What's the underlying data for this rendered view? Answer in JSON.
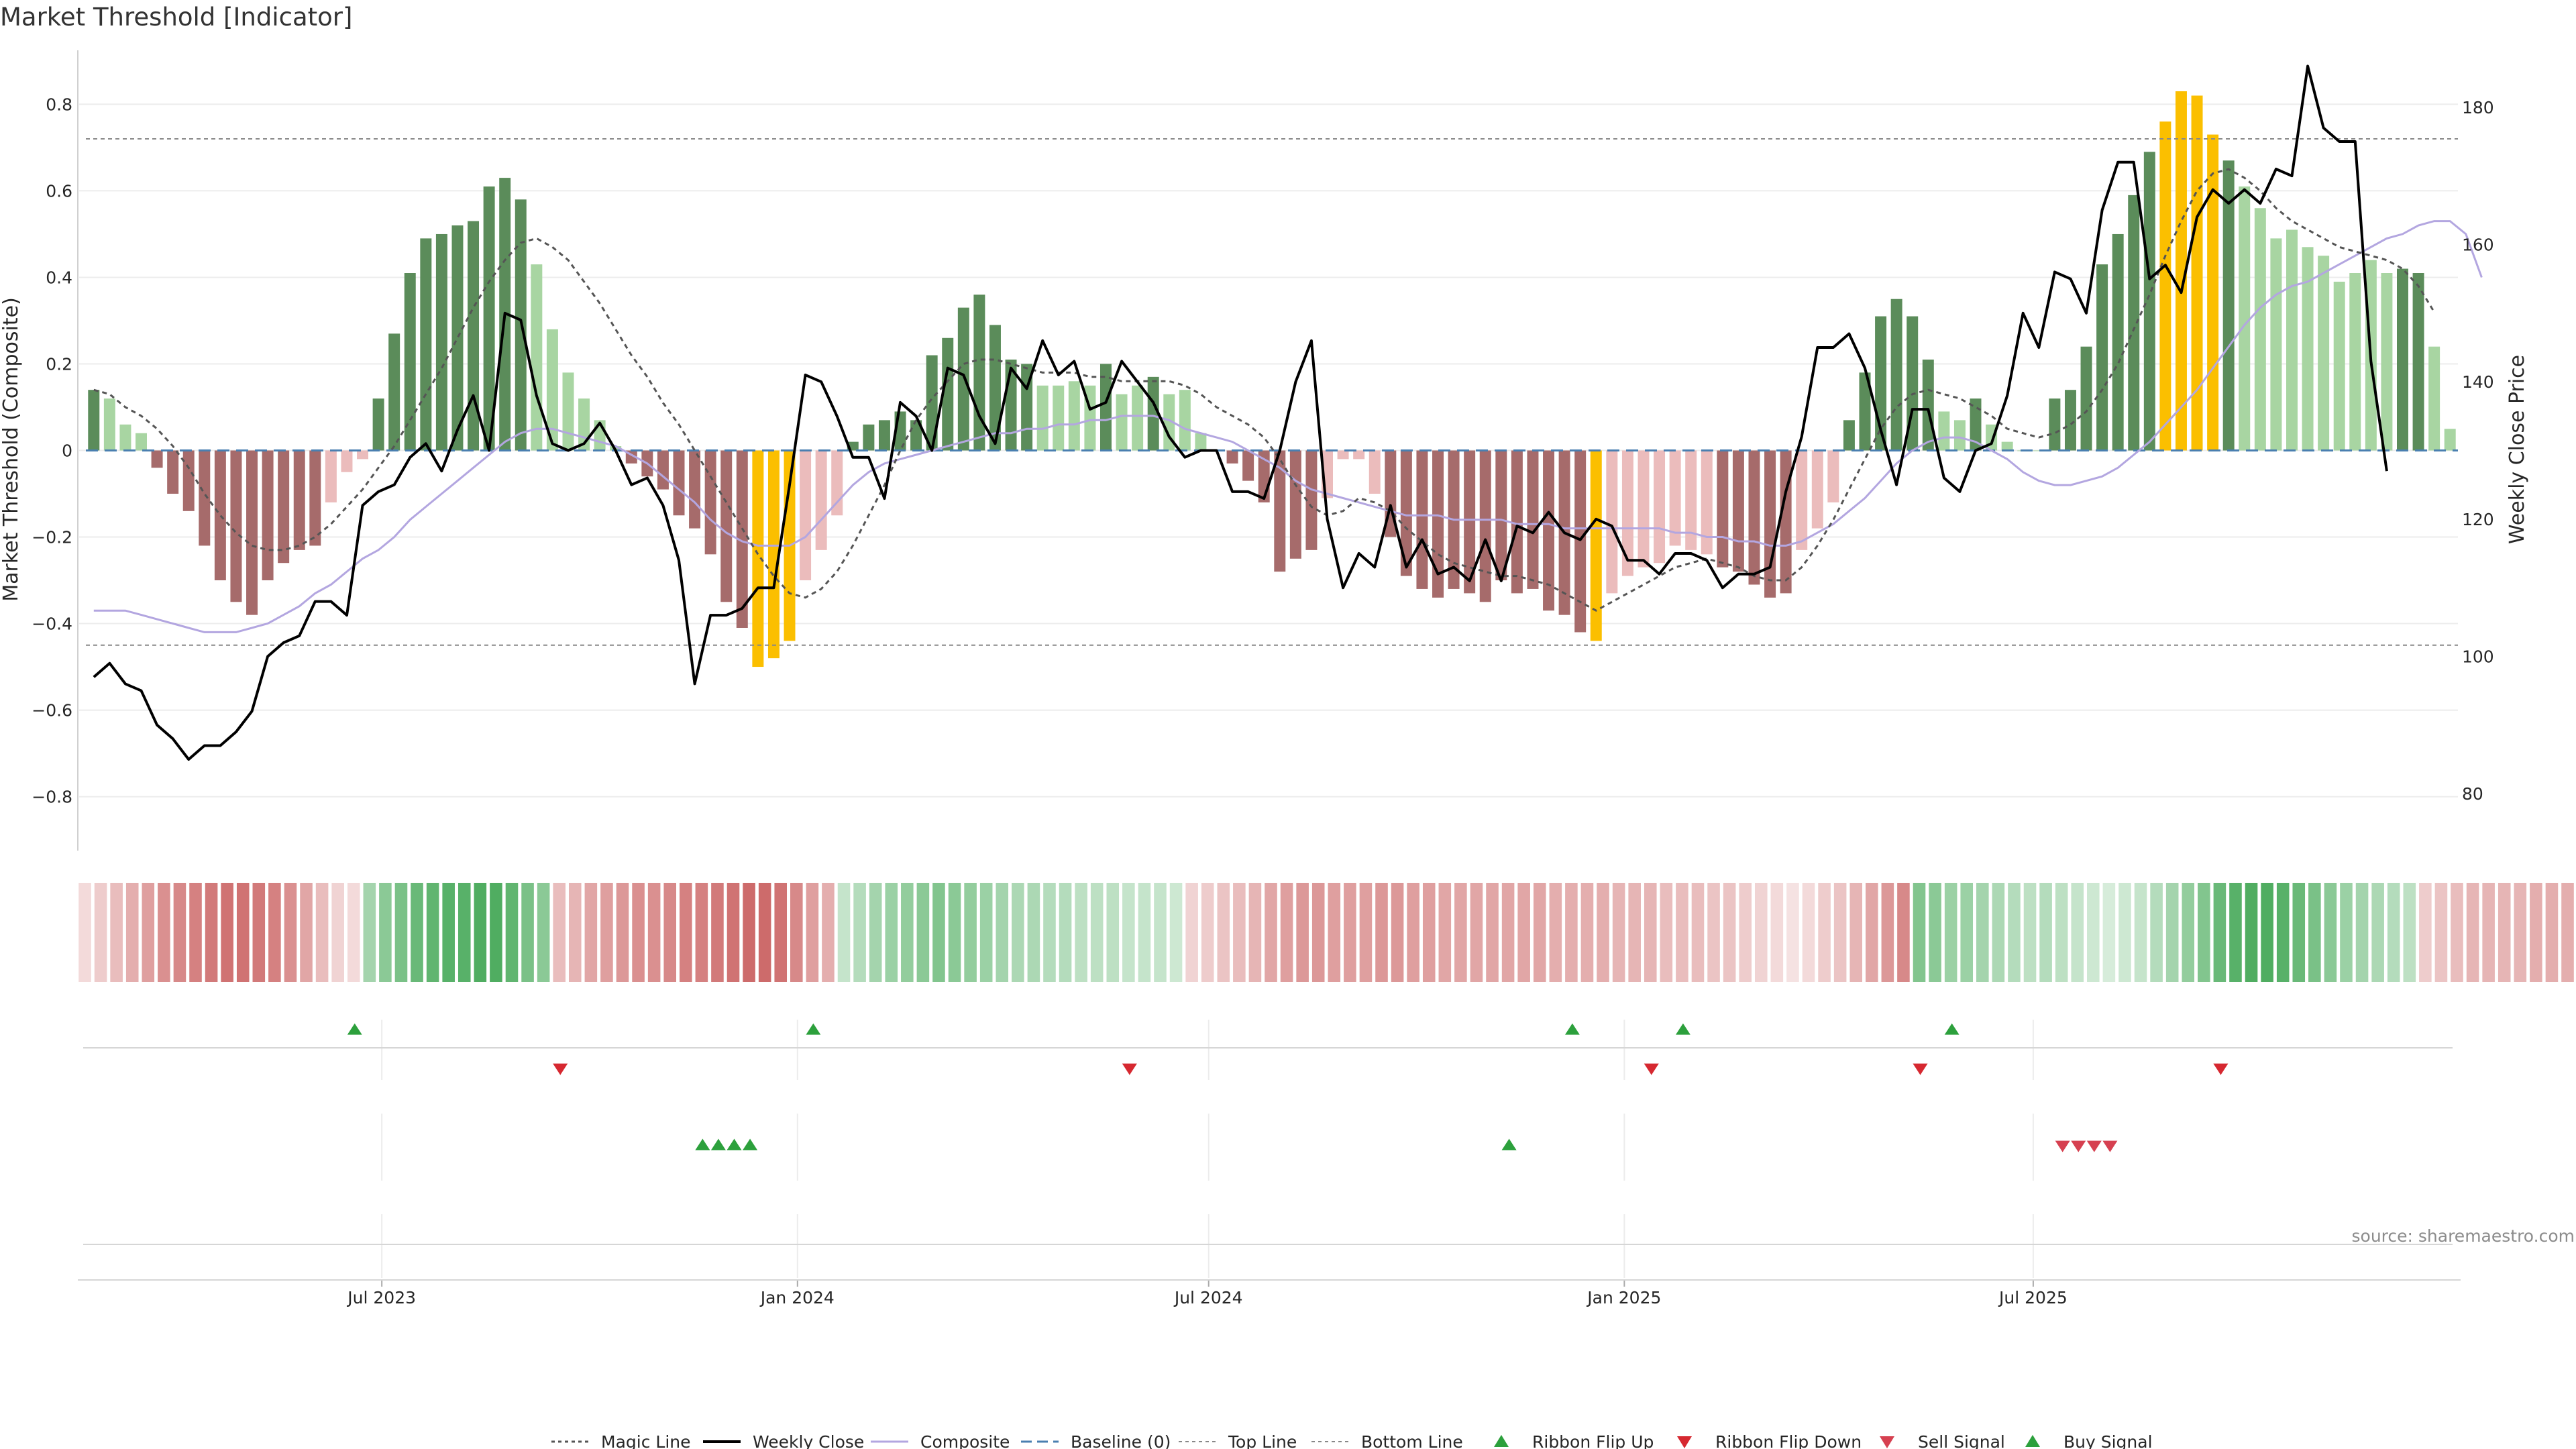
{
  "title": "Market Threshold [Indicator]",
  "source": "source: sharemaestro.com",
  "chart_data": {
    "type": "bar",
    "title": "Market Threshold [Indicator]",
    "ylabel": "Market Threshold (Composite)",
    "ylabel_right": "Weekly Close Price",
    "ylim": [
      -0.92,
      0.92
    ],
    "ylim_right": [
      72,
      188
    ],
    "yticks": [
      "0.8",
      "0.6",
      "0.4",
      "0.2",
      "0",
      "−0.2",
      "−0.4",
      "−0.6",
      "−0.8"
    ],
    "yticks_right": [
      "180",
      "160",
      "140",
      "120",
      "100",
      "80"
    ],
    "x_start": "2023-02-20",
    "x_interval": "weekly",
    "xticks": [
      "Jul 2023",
      "Jan 2024",
      "Jul 2024",
      "Jan 2025",
      "Jul 2025"
    ],
    "xtick_dates": [
      "2023-07-01",
      "2024-01-01",
      "2024-07-01",
      "2025-01-01",
      "2025-07-01"
    ],
    "top_line": 0.72,
    "bottom_line": -0.45,
    "baseline": 0,
    "composite_bars": [
      0.14,
      0.12,
      0.06,
      0.04,
      -0.04,
      -0.1,
      -0.14,
      -0.22,
      -0.3,
      -0.35,
      -0.38,
      -0.3,
      -0.26,
      -0.23,
      -0.22,
      -0.12,
      -0.05,
      -0.02,
      0.12,
      0.27,
      0.41,
      0.49,
      0.5,
      0.52,
      0.53,
      0.61,
      0.63,
      0.58,
      0.43,
      0.28,
      0.18,
      0.12,
      0.07,
      0.01,
      -0.03,
      -0.06,
      -0.09,
      -0.15,
      -0.18,
      -0.24,
      -0.35,
      -0.41,
      -0.5,
      -0.48,
      -0.44,
      -0.3,
      -0.23,
      -0.15,
      0.02,
      0.06,
      0.07,
      0.09,
      0.07,
      0.22,
      0.26,
      0.33,
      0.36,
      0.29,
      0.21,
      0.2,
      0.15,
      0.15,
      0.16,
      0.15,
      0.2,
      0.13,
      0.15,
      0.17,
      0.13,
      0.14,
      0.04,
      0.0,
      -0.03,
      -0.07,
      -0.12,
      -0.28,
      -0.25,
      -0.23,
      -0.11,
      -0.02,
      -0.02,
      -0.1,
      -0.2,
      -0.29,
      -0.32,
      -0.34,
      -0.32,
      -0.33,
      -0.35,
      -0.3,
      -0.33,
      -0.32,
      -0.37,
      -0.38,
      -0.42,
      -0.44,
      -0.33,
      -0.29,
      -0.27,
      -0.26,
      -0.22,
      -0.23,
      -0.24,
      -0.27,
      -0.28,
      -0.31,
      -0.34,
      -0.33,
      -0.23,
      -0.18,
      -0.12,
      0.07,
      0.18,
      0.31,
      0.35,
      0.31,
      0.21,
      0.09,
      0.07,
      0.12,
      0.06,
      0.02,
      0.0,
      0.0,
      0.12,
      0.14,
      0.24,
      0.43,
      0.5,
      0.59,
      0.69,
      0.76,
      0.83,
      0.82,
      0.73,
      0.67,
      0.61,
      0.56,
      0.49,
      0.51,
      0.47,
      0.45,
      0.39,
      0.41,
      0.44,
      0.41,
      0.42,
      0.41,
      0.24,
      0.05
    ],
    "weekly_close": [
      97,
      99,
      96,
      95,
      90,
      88,
      85,
      87,
      87,
      89,
      92,
      100,
      102,
      103,
      108,
      108,
      106,
      122,
      124,
      125,
      129,
      131,
      127,
      133,
      138,
      130,
      150,
      149,
      138,
      131,
      130,
      131,
      134,
      130,
      125,
      126,
      122,
      114,
      96,
      106,
      106,
      107,
      110,
      110,
      125,
      141,
      140,
      135,
      129,
      129,
      123,
      137,
      135,
      130,
      142,
      141,
      135,
      131,
      142,
      139,
      146,
      141,
      143,
      136,
      137,
      143,
      140,
      137,
      132,
      129,
      130,
      130,
      124,
      124,
      123,
      130,
      140,
      146,
      120,
      110,
      115,
      113,
      122,
      113,
      117,
      112,
      113,
      111,
      117,
      111,
      119,
      118,
      121,
      118,
      117,
      120,
      119,
      114,
      114,
      112,
      115,
      115,
      114,
      110,
      112,
      112,
      113,
      124,
      132,
      145,
      145,
      147,
      142,
      133,
      125,
      136,
      136,
      126,
      124,
      130,
      131,
      138,
      150,
      145,
      156,
      155,
      150,
      165,
      172,
      172,
      155,
      157,
      153,
      164,
      168,
      166,
      168,
      166,
      171,
      170,
      186,
      177,
      175,
      175,
      143,
      127
    ],
    "magic_line": [
      0.14,
      0.13,
      0.1,
      0.08,
      0.05,
      0.01,
      -0.04,
      -0.1,
      -0.15,
      -0.19,
      -0.22,
      -0.23,
      -0.23,
      -0.22,
      -0.2,
      -0.17,
      -0.13,
      -0.09,
      -0.04,
      0.01,
      0.07,
      0.13,
      0.19,
      0.26,
      0.33,
      0.39,
      0.44,
      0.48,
      0.49,
      0.47,
      0.44,
      0.39,
      0.34,
      0.28,
      0.22,
      0.17,
      0.11,
      0.06,
      0.0,
      -0.06,
      -0.12,
      -0.18,
      -0.24,
      -0.29,
      -0.33,
      -0.34,
      -0.32,
      -0.28,
      -0.22,
      -0.15,
      -0.08,
      0.0,
      0.07,
      0.12,
      0.16,
      0.2,
      0.21,
      0.21,
      0.2,
      0.19,
      0.18,
      0.18,
      0.18,
      0.17,
      0.17,
      0.16,
      0.16,
      0.16,
      0.16,
      0.15,
      0.13,
      0.1,
      0.08,
      0.06,
      0.03,
      -0.02,
      -0.08,
      -0.13,
      -0.15,
      -0.14,
      -0.11,
      -0.12,
      -0.14,
      -0.18,
      -0.21,
      -0.24,
      -0.26,
      -0.27,
      -0.28,
      -0.29,
      -0.29,
      -0.3,
      -0.31,
      -0.33,
      -0.35,
      -0.37,
      -0.35,
      -0.33,
      -0.31,
      -0.29,
      -0.27,
      -0.26,
      -0.25,
      -0.26,
      -0.27,
      -0.29,
      -0.3,
      -0.3,
      -0.27,
      -0.22,
      -0.16,
      -0.09,
      -0.02,
      0.05,
      0.1,
      0.13,
      0.14,
      0.13,
      0.12,
      0.1,
      0.08,
      0.05,
      0.04,
      0.03,
      0.04,
      0.06,
      0.09,
      0.14,
      0.2,
      0.28,
      0.36,
      0.45,
      0.53,
      0.6,
      0.64,
      0.65,
      0.63,
      0.6,
      0.56,
      0.53,
      0.51,
      0.49,
      0.47,
      0.46,
      0.45,
      0.44,
      0.42,
      0.38,
      0.32
    ],
    "composite_line": [
      -0.37,
      -0.37,
      -0.37,
      -0.38,
      -0.39,
      -0.4,
      -0.41,
      -0.42,
      -0.42,
      -0.42,
      -0.41,
      -0.4,
      -0.38,
      -0.36,
      -0.33,
      -0.31,
      -0.28,
      -0.25,
      -0.23,
      -0.2,
      -0.16,
      -0.13,
      -0.1,
      -0.07,
      -0.04,
      -0.01,
      0.02,
      0.04,
      0.05,
      0.05,
      0.04,
      0.03,
      0.02,
      0.01,
      -0.01,
      -0.03,
      -0.06,
      -0.09,
      -0.12,
      -0.16,
      -0.19,
      -0.21,
      -0.22,
      -0.22,
      -0.22,
      -0.2,
      -0.16,
      -0.12,
      -0.08,
      -0.05,
      -0.03,
      -0.02,
      -0.01,
      0.0,
      0.01,
      0.02,
      0.03,
      0.04,
      0.04,
      0.05,
      0.05,
      0.06,
      0.06,
      0.07,
      0.07,
      0.08,
      0.08,
      0.08,
      0.07,
      0.05,
      0.04,
      0.03,
      0.02,
      0.0,
      -0.02,
      -0.04,
      -0.07,
      -0.09,
      -0.1,
      -0.11,
      -0.12,
      -0.13,
      -0.14,
      -0.15,
      -0.15,
      -0.15,
      -0.16,
      -0.16,
      -0.16,
      -0.16,
      -0.17,
      -0.17,
      -0.17,
      -0.18,
      -0.18,
      -0.18,
      -0.18,
      -0.18,
      -0.18,
      -0.18,
      -0.19,
      -0.19,
      -0.2,
      -0.2,
      -0.21,
      -0.21,
      -0.22,
      -0.22,
      -0.21,
      -0.19,
      -0.17,
      -0.14,
      -0.11,
      -0.07,
      -0.03,
      0.0,
      0.02,
      0.03,
      0.03,
      0.02,
      0.0,
      -0.02,
      -0.05,
      -0.07,
      -0.08,
      -0.08,
      -0.07,
      -0.06,
      -0.04,
      -0.01,
      0.02,
      0.06,
      0.1,
      0.14,
      0.19,
      0.24,
      0.29,
      0.33,
      0.36,
      0.38,
      0.39,
      0.41,
      0.43,
      0.45,
      0.47,
      0.49,
      0.5,
      0.52,
      0.53,
      0.53,
      0.5,
      0.4
    ],
    "ribbon_strength": [
      0.1,
      0.2,
      0.3,
      0.4,
      0.5,
      0.6,
      0.65,
      0.7,
      0.75,
      0.8,
      0.8,
      0.75,
      0.7,
      0.6,
      0.45,
      0.3,
      0.15,
      0.1,
      0.4,
      0.55,
      0.65,
      0.75,
      0.8,
      0.85,
      0.85,
      0.9,
      0.9,
      0.8,
      0.65,
      0.55,
      0.3,
      0.35,
      0.45,
      0.5,
      0.55,
      0.6,
      0.6,
      0.65,
      0.7,
      0.7,
      0.75,
      0.8,
      0.85,
      0.85,
      0.8,
      0.65,
      0.5,
      0.4,
      0.2,
      0.3,
      0.4,
      0.45,
      0.5,
      0.55,
      0.6,
      0.55,
      0.5,
      0.45,
      0.4,
      0.35,
      0.35,
      0.3,
      0.3,
      0.25,
      0.25,
      0.25,
      0.2,
      0.2,
      0.2,
      0.15,
      0.15,
      0.2,
      0.25,
      0.3,
      0.35,
      0.45,
      0.5,
      0.55,
      0.55,
      0.5,
      0.5,
      0.5,
      0.55,
      0.55,
      0.5,
      0.5,
      0.45,
      0.45,
      0.45,
      0.45,
      0.45,
      0.45,
      0.45,
      0.4,
      0.4,
      0.4,
      0.4,
      0.35,
      0.35,
      0.35,
      0.3,
      0.3,
      0.3,
      0.25,
      0.25,
      0.2,
      0.15,
      0.1,
      0.05,
      0.1,
      0.2,
      0.25,
      0.35,
      0.45,
      0.55,
      0.65,
      0.6,
      0.55,
      0.45,
      0.45,
      0.4,
      0.35,
      0.3,
      0.25,
      0.3,
      0.25,
      0.2,
      0.15,
      0.1,
      0.15,
      0.2,
      0.3,
      0.4,
      0.5,
      0.6,
      0.75,
      0.85,
      0.9,
      0.9,
      0.85,
      0.75,
      0.65,
      0.55,
      0.45,
      0.4,
      0.35,
      0.3,
      0.25,
      0.2,
      0.25,
      0.3,
      0.35,
      0.35,
      0.35,
      0.35,
      0.4,
      0.4,
      0.4
    ],
    "ribbon_bull": [
      false,
      false,
      false,
      false,
      false,
      false,
      false,
      false,
      false,
      false,
      false,
      false,
      false,
      false,
      false,
      false,
      false,
      false,
      true,
      true,
      true,
      true,
      true,
      true,
      true,
      true,
      true,
      true,
      true,
      true,
      false,
      false,
      false,
      false,
      false,
      false,
      false,
      false,
      false,
      false,
      false,
      false,
      false,
      false,
      false,
      false,
      false,
      false,
      true,
      true,
      true,
      true,
      true,
      true,
      true,
      true,
      true,
      true,
      true,
      true,
      true,
      true,
      true,
      true,
      true,
      true,
      true,
      true,
      true,
      true,
      false,
      false,
      false,
      false,
      false,
      false,
      false,
      false,
      false,
      false,
      false,
      false,
      false,
      false,
      false,
      false,
      false,
      false,
      false,
      false,
      false,
      false,
      false,
      false,
      false,
      false,
      false,
      false,
      false,
      false,
      false,
      false,
      false,
      false,
      false,
      false,
      false,
      false,
      false,
      false,
      false,
      false,
      false,
      false,
      false,
      false,
      true,
      true,
      true,
      true,
      true,
      true,
      true,
      true,
      true,
      true,
      true,
      true,
      true,
      true,
      true,
      true,
      true,
      true,
      true,
      true,
      true,
      true,
      true,
      true,
      true,
      true,
      true,
      true,
      true,
      true,
      true,
      true,
      false,
      false,
      false,
      false,
      false,
      false,
      false
    ],
    "ribbon_flip_up_weeks": [
      17,
      46,
      94,
      101,
      118
    ],
    "ribbon_flip_down_weeks": [
      30,
      66,
      99,
      116,
      135
    ],
    "buy_signal_weeks": [
      39,
      40,
      41,
      42,
      90
    ],
    "sell_signal_weeks": [
      125,
      126,
      127,
      128
    ],
    "legend": [
      "Magic Line",
      "Weekly Close",
      "Composite",
      "Baseline (0)",
      "Top Line",
      "Bottom Line",
      "Ribbon Flip Up",
      "Ribbon Flip Down",
      "Sell Signal",
      "Buy Signal"
    ],
    "legend_placement": "bottom-center",
    "grid": true,
    "colors": {
      "bull_strong": "#5b8c5a",
      "bull_weak": "#a8d5a2",
      "bear_strong": "#a66b6b",
      "bear_weak": "#ebbcbc",
      "extreme": "#fbbf00",
      "weekly_close": "#000000",
      "magic_line": "#555555",
      "composite_line": "#b3a6e0",
      "baseline": "#4a7fb0",
      "threshold_lines": "#888888",
      "ribbon_green": "#33a047",
      "ribbon_red": "#c24a4a",
      "flip_up": "#2ca03c",
      "flip_down": "#d62830",
      "buy_signal": "#2ca03c",
      "sell_signal": "#d64050"
    }
  }
}
